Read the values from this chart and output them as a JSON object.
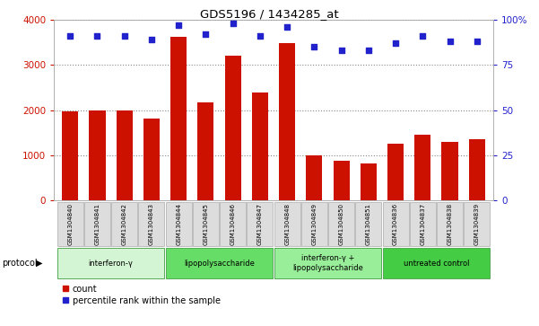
{
  "title": "GDS5196 / 1434285_at",
  "samples": [
    "GSM1304840",
    "GSM1304841",
    "GSM1304842",
    "GSM1304843",
    "GSM1304844",
    "GSM1304845",
    "GSM1304846",
    "GSM1304847",
    "GSM1304848",
    "GSM1304849",
    "GSM1304850",
    "GSM1304851",
    "GSM1304836",
    "GSM1304837",
    "GSM1304838",
    "GSM1304839"
  ],
  "counts": [
    1980,
    2000,
    2000,
    1820,
    3620,
    2160,
    3200,
    2380,
    3480,
    1000,
    870,
    820,
    1260,
    1460,
    1300,
    1360
  ],
  "percentiles": [
    91,
    91,
    91,
    89,
    97,
    92,
    98,
    91,
    96,
    85,
    83,
    83,
    87,
    91,
    88,
    88
  ],
  "groups": [
    {
      "label": "interferon-γ",
      "start": 0,
      "end": 4,
      "color": "#d4f5d4"
    },
    {
      "label": "lipopolysaccharide",
      "start": 4,
      "end": 8,
      "color": "#66dd66"
    },
    {
      "label": "interferon-γ +\nlipopolysaccharide",
      "start": 8,
      "end": 12,
      "color": "#99ee99"
    },
    {
      "label": "untreated control",
      "start": 12,
      "end": 16,
      "color": "#44cc44"
    }
  ],
  "bar_color": "#cc1100",
  "dot_color": "#2222cc",
  "ylim_left": [
    0,
    4000
  ],
  "ylim_right": [
    0,
    100
  ],
  "yticks_left": [
    0,
    1000,
    2000,
    3000,
    4000
  ],
  "yticks_right": [
    0,
    25,
    50,
    75,
    100
  ],
  "yticklabels_right": [
    "0",
    "25",
    "50",
    "75",
    "100%"
  ],
  "tick_label_color_left": "#cc1100",
  "tick_label_color_right": "#2222cc",
  "protocol_label": "protocol"
}
